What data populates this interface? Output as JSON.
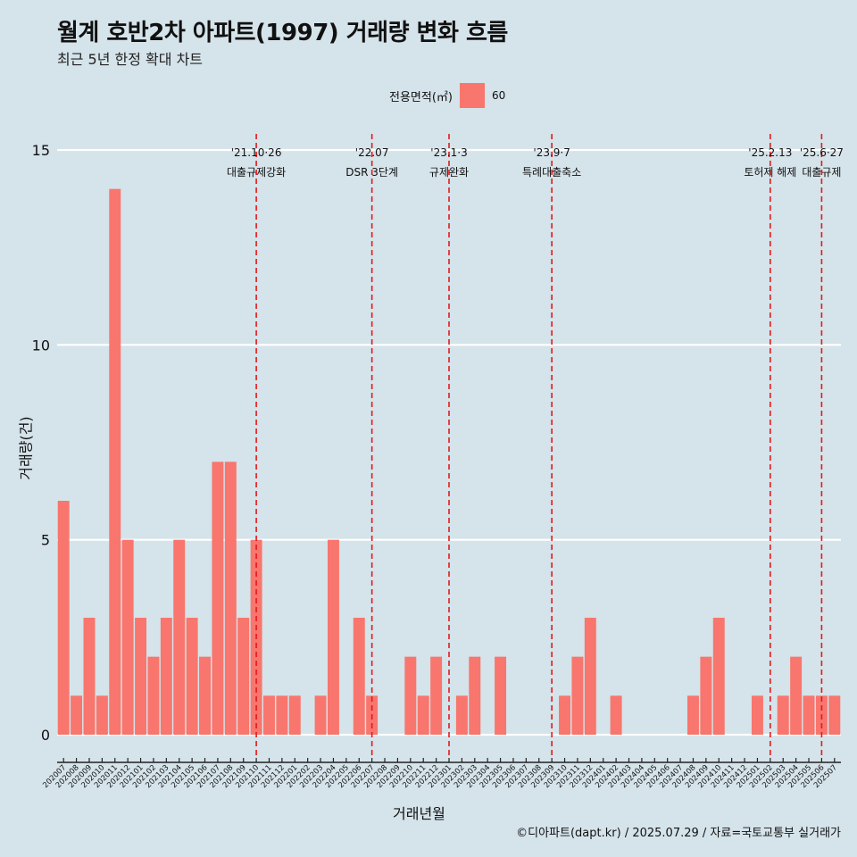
{
  "title": "월계 호반2차 아파트(1997) 거래량 변화 흐름",
  "subtitle": "최근 5년 한정 확대 차트",
  "legend": {
    "title": "전용면적(㎡)",
    "label": "60",
    "color": "#f8766d"
  },
  "xlabel": "거래년월",
  "ylabel": "거래량(건)",
  "caption": "©디아파트(dapt.kr) / 2025.07.29 / 자료=국토교통부 실거래가",
  "chart_data": {
    "type": "bar",
    "categories": [
      "202007",
      "202008",
      "202009",
      "202010",
      "202011",
      "202012",
      "202101",
      "202102",
      "202103",
      "202104",
      "202105",
      "202106",
      "202107",
      "202108",
      "202109",
      "202110",
      "202111",
      "202112",
      "202201",
      "202202",
      "202203",
      "202204",
      "202205",
      "202206",
      "202207",
      "202208",
      "202209",
      "202210",
      "202211",
      "202212",
      "202301",
      "202302",
      "202303",
      "202304",
      "202305",
      "202306",
      "202307",
      "202308",
      "202309",
      "202310",
      "202311",
      "202312",
      "202401",
      "202402",
      "202403",
      "202404",
      "202405",
      "202406",
      "202407",
      "202408",
      "202409",
      "202410",
      "202411",
      "202412",
      "202501",
      "202502",
      "202503",
      "202504",
      "202505",
      "202506",
      "202507"
    ],
    "series": [
      {
        "name": "60",
        "values": [
          6,
          1,
          3,
          1,
          14,
          5,
          3,
          2,
          3,
          5,
          3,
          2,
          7,
          7,
          3,
          5,
          1,
          1,
          1,
          0,
          1,
          5,
          0,
          3,
          1,
          0,
          0,
          2,
          1,
          2,
          0,
          1,
          2,
          0,
          2,
          0,
          0,
          0,
          0,
          1,
          2,
          3,
          0,
          1,
          0,
          0,
          0,
          0,
          0,
          1,
          2,
          3,
          0,
          0,
          1,
          0,
          1,
          2,
          1,
          1,
          1
        ]
      }
    ],
    "ylim": [
      0,
      15
    ],
    "yticks": [
      0,
      5,
      10,
      15
    ],
    "bar_color": "#f8766d",
    "grid": true,
    "legend_position": "top",
    "events": [
      {
        "category": "202110",
        "date": "'21.10·26",
        "label": "대출규제강화"
      },
      {
        "category": "202207",
        "date": "'22.07",
        "label": "DSR 3단계"
      },
      {
        "category": "202301",
        "date": "'23.1·3",
        "label": "규제완화"
      },
      {
        "category": "202309",
        "date": "'23.9·7",
        "label": "특례대출축소"
      },
      {
        "category": "202502",
        "date": "'25.2.13",
        "label": "토허제 해제"
      },
      {
        "category": "202506",
        "date": "'25.6·27",
        "label": "대출규제"
      }
    ],
    "event_line_color": "#e31a1c"
  }
}
